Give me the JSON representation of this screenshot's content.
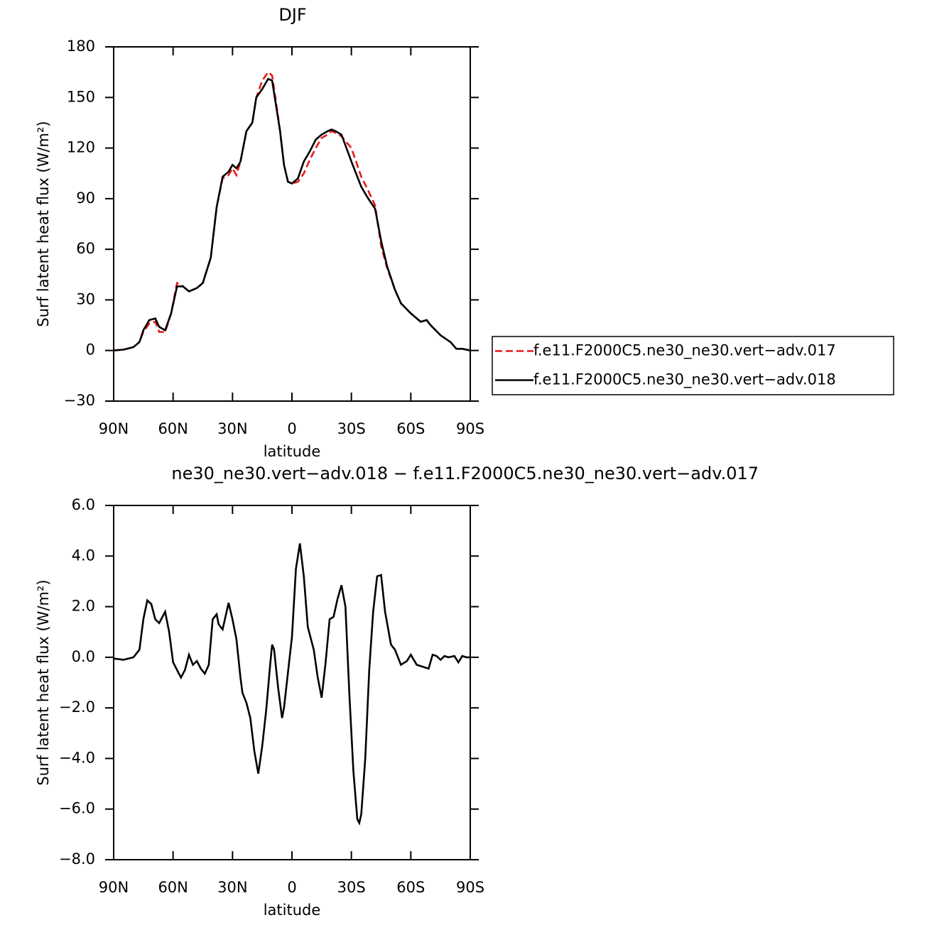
{
  "chart_data": [
    {
      "type": "line",
      "title": "DJF",
      "xlabel": "latitude",
      "ylabel": "Surf latent heat flux (W/m²)",
      "x": [
        90,
        85,
        80,
        77,
        75,
        72,
        69,
        67,
        64,
        61,
        58,
        55,
        52,
        48,
        45,
        41,
        38,
        35,
        32,
        30,
        28,
        26,
        23,
        20,
        18,
        15,
        12,
        10,
        8,
        6,
        4,
        2,
        0,
        -3,
        -6,
        -9,
        -12,
        -15,
        -18,
        -20,
        -22,
        -25,
        -30,
        -35,
        -38,
        -42,
        -45,
        -48,
        -52,
        -55,
        -60,
        -65,
        -68,
        -70,
        -75,
        -80,
        -83,
        -86,
        -90
      ],
      "series": [
        {
          "name": "f.e11.F2000C5.ne30_ne30.vert−adv.017",
          "color": "#e8191c",
          "style": "dashed",
          "values": [
            0,
            0.5,
            2,
            5,
            11,
            16,
            17,
            11,
            11,
            22,
            40,
            38,
            35,
            37,
            40,
            55,
            85,
            102,
            104,
            108,
            104,
            112,
            130,
            135,
            150,
            160,
            165,
            163,
            147,
            130,
            110,
            100,
            99,
            100,
            105,
            113,
            120,
            126,
            128,
            130,
            129,
            127,
            120,
            103,
            96,
            86,
            62,
            49,
            36,
            28,
            22,
            17,
            18,
            15,
            9,
            5,
            1,
            1,
            0
          ]
        },
        {
          "name": "f.e11.F2000C5.ne30_ne30.vert−adv.018",
          "color": "#000000",
          "style": "solid",
          "values": [
            0,
            0.5,
            2,
            5,
            12,
            18,
            19,
            14,
            12,
            22,
            38,
            38,
            35,
            37,
            40,
            55,
            85,
            103,
            106,
            110,
            108,
            112,
            130,
            135,
            150,
            155,
            161,
            160,
            145,
            130,
            110,
            100,
            99,
            102,
            112,
            118,
            125,
            128,
            130,
            131,
            130,
            128,
            112,
            97,
            91,
            84,
            65,
            50,
            36,
            28,
            22,
            17,
            18,
            15,
            9,
            5,
            1,
            1,
            0
          ]
        }
      ],
      "xlim": [
        90,
        -90
      ],
      "xticks": [
        {
          "value": 90,
          "label": "90N"
        },
        {
          "value": 60,
          "label": "60N"
        },
        {
          "value": 30,
          "label": "30N"
        },
        0,
        {
          "value": -30,
          "label": "30S"
        },
        {
          "value": -60,
          "label": "60S"
        },
        {
          "value": -90,
          "label": "90S"
        }
      ],
      "ylim": [
        -30,
        180
      ],
      "yticks": [
        {
          "value": -30,
          "label": "−30"
        },
        0,
        30,
        60,
        90,
        120,
        150,
        180
      ],
      "legend": "right"
    },
    {
      "type": "line",
      "title": "ne30_ne30.vert−adv.018 − f.e11.F2000C5.ne30_ne30.vert−adv.017",
      "xlabel": "latitude",
      "ylabel": "Surf latent heat flux (W/m²)",
      "x": [
        90,
        85,
        80,
        77,
        75,
        73,
        71,
        69,
        67,
        64,
        62,
        60,
        58,
        56,
        54,
        52,
        50,
        48,
        46,
        44,
        42,
        40,
        38,
        37,
        35,
        32,
        30,
        28,
        26,
        25,
        23,
        21,
        19,
        17,
        15,
        13,
        11,
        10,
        9,
        7,
        5,
        4,
        2,
        0,
        -2,
        -4,
        -6,
        -8,
        -11,
        -13,
        -15,
        -17,
        -19,
        -21,
        -23,
        -25,
        -27,
        -29,
        -31,
        -33,
        -34,
        -35,
        -37,
        -39,
        -41,
        -43,
        -45,
        -47,
        -50,
        -52,
        -55,
        -58,
        -60,
        -63,
        -65,
        -67,
        -69,
        -71,
        -73,
        -75,
        -77,
        -79,
        -82,
        -84,
        -86,
        -88,
        -90
      ],
      "values": [
        -0.05,
        -0.1,
        0,
        0.3,
        1.5,
        2.25,
        2.1,
        1.5,
        1.35,
        1.8,
        1.0,
        -0.2,
        -0.5,
        -0.8,
        -0.5,
        0.1,
        -0.3,
        -0.15,
        -0.45,
        -0.65,
        -0.3,
        1.5,
        1.7,
        1.3,
        1.1,
        2.15,
        1.5,
        0.7,
        -0.8,
        -1.4,
        -1.8,
        -2.4,
        -3.7,
        -4.6,
        -3.5,
        -2.1,
        -0.3,
        0.5,
        0.3,
        -1.2,
        -2.4,
        -2.0,
        -0.6,
        0.8,
        3.5,
        4.5,
        3.2,
        1.2,
        0.3,
        -0.8,
        -1.6,
        -0.2,
        1.5,
        1.6,
        2.3,
        2.85,
        2.0,
        -1.5,
        -4.5,
        -6.4,
        -6.55,
        -6.2,
        -4.0,
        -0.5,
        1.8,
        3.2,
        3.25,
        1.8,
        0.5,
        0.3,
        -0.3,
        -0.15,
        0.1,
        -0.3,
        -0.35,
        -0.4,
        -0.45,
        0.1,
        0.05,
        -0.1,
        0.05,
        0,
        0.05,
        -0.2,
        0.05,
        0,
        0
      ],
      "color": "#000000",
      "xlim": [
        90,
        -90
      ],
      "xticks": [
        {
          "value": 90,
          "label": "90N"
        },
        {
          "value": 60,
          "label": "60N"
        },
        {
          "value": 30,
          "label": "30N"
        },
        0,
        {
          "value": -30,
          "label": "30S"
        },
        {
          "value": -60,
          "label": "60S"
        },
        {
          "value": -90,
          "label": "90S"
        }
      ],
      "ylim": [
        -8,
        6
      ],
      "yticks": [
        {
          "value": -8,
          "label": "−8.0"
        },
        {
          "value": -6,
          "label": "−6.0"
        },
        {
          "value": -4,
          "label": "−4.0"
        },
        {
          "value": -2,
          "label": "−2.0"
        },
        {
          "value": 0,
          "label": "0.0"
        },
        {
          "value": 2,
          "label": "2.0"
        },
        {
          "value": 4,
          "label": "4.0"
        },
        {
          "value": 6,
          "label": "6.0"
        }
      ]
    }
  ]
}
